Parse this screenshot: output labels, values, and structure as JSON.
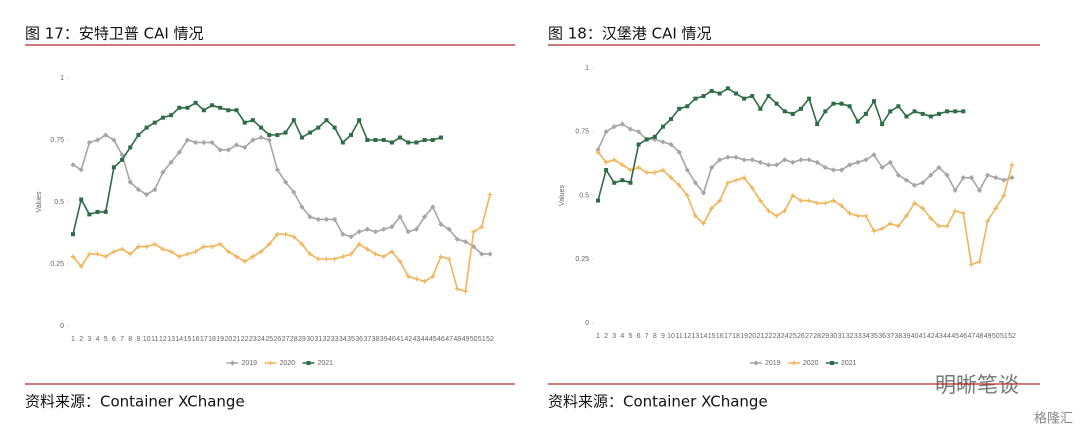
{
  "chart_data": [
    {
      "type": "line",
      "title": "图 17：安特卫普 CAI 情况",
      "source": "资料来源：Container XChange",
      "ylabel": "Values",
      "categories": [
        "1",
        "2",
        "3",
        "4",
        "5",
        "6",
        "7",
        "8",
        "9",
        "10",
        "11",
        "12",
        "13",
        "14",
        "15",
        "16",
        "17",
        "18",
        "19",
        "20",
        "21",
        "22",
        "23",
        "24",
        "25",
        "26",
        "27",
        "28",
        "29",
        "30",
        "31",
        "32",
        "33",
        "34",
        "35",
        "36",
        "37",
        "38",
        "39",
        "40",
        "41",
        "42",
        "43",
        "44",
        "45",
        "46",
        "47",
        "48",
        "49",
        "50",
        "51",
        "52"
      ],
      "ylim": [
        0,
        1
      ],
      "yticks": [
        0,
        0.25,
        0.5,
        0.75,
        1
      ],
      "legend": "bottom",
      "series": [
        {
          "name": "2019",
          "color": "#a6a6a6",
          "values": [
            0.65,
            0.63,
            0.74,
            0.75,
            0.77,
            0.75,
            0.69,
            0.58,
            0.55,
            0.53,
            0.55,
            0.62,
            0.66,
            0.7,
            0.75,
            0.74,
            0.74,
            0.74,
            0.71,
            0.71,
            0.73,
            0.72,
            0.75,
            0.76,
            0.75,
            0.63,
            0.58,
            0.54,
            0.48,
            0.44,
            0.43,
            0.43,
            0.43,
            0.37,
            0.36,
            0.38,
            0.39,
            0.38,
            0.39,
            0.4,
            0.44,
            0.38,
            0.39,
            0.44,
            0.48,
            0.41,
            0.39,
            0.35,
            0.34,
            0.32,
            0.29,
            0.29
          ]
        },
        {
          "name": "2020",
          "color": "#f0b45a",
          "values": [
            0.28,
            0.24,
            0.29,
            0.29,
            0.28,
            0.3,
            0.31,
            0.29,
            0.32,
            0.32,
            0.33,
            0.31,
            0.3,
            0.28,
            0.29,
            0.3,
            0.32,
            0.32,
            0.33,
            0.3,
            0.28,
            0.26,
            0.28,
            0.3,
            0.33,
            0.37,
            0.37,
            0.36,
            0.33,
            0.29,
            0.27,
            0.27,
            0.27,
            0.28,
            0.29,
            0.33,
            0.31,
            0.29,
            0.28,
            0.3,
            0.26,
            0.2,
            0.19,
            0.18,
            0.2,
            0.28,
            0.27,
            0.15,
            0.14,
            0.38,
            0.4,
            0.53
          ]
        },
        {
          "name": "2021",
          "color": "#2e6b46",
          "values": [
            0.37,
            0.51,
            0.45,
            0.46,
            0.46,
            0.64,
            0.67,
            0.72,
            0.77,
            0.8,
            0.82,
            0.84,
            0.85,
            0.88,
            0.88,
            0.9,
            0.87,
            0.89,
            0.88,
            0.87,
            0.87,
            0.82,
            0.83,
            0.8,
            0.77,
            0.77,
            0.78,
            0.83,
            0.76,
            0.78,
            0.8,
            0.83,
            0.8,
            0.74,
            0.77,
            0.83,
            0.75,
            0.75,
            0.75,
            0.74,
            0.76,
            0.74,
            0.74,
            0.75,
            0.75,
            0.76,
            null,
            null,
            null,
            null,
            null,
            null
          ]
        }
      ]
    },
    {
      "type": "line",
      "title": "图 18：汉堡港 CAI 情况",
      "source": "资料来源：Container XChange",
      "ylabel": "Values",
      "categories": [
        "1",
        "2",
        "3",
        "4",
        "5",
        "6",
        "7",
        "8",
        "9",
        "10",
        "11",
        "12",
        "13",
        "14",
        "15",
        "16",
        "17",
        "18",
        "19",
        "20",
        "21",
        "22",
        "23",
        "24",
        "25",
        "26",
        "27",
        "28",
        "29",
        "30",
        "31",
        "32",
        "33",
        "34",
        "35",
        "36",
        "37",
        "38",
        "39",
        "40",
        "41",
        "42",
        "43",
        "44",
        "45",
        "46",
        "47",
        "48",
        "49",
        "50",
        "51",
        "52"
      ],
      "ylim": [
        0,
        1
      ],
      "yticks": [
        0,
        0.25,
        0.5,
        0.75,
        1
      ],
      "legend": "bottom",
      "series": [
        {
          "name": "2019",
          "color": "#a6a6a6",
          "values": [
            0.68,
            0.75,
            0.77,
            0.78,
            0.76,
            0.75,
            0.72,
            0.72,
            0.71,
            0.7,
            0.67,
            0.6,
            0.55,
            0.51,
            0.61,
            0.64,
            0.65,
            0.65,
            0.64,
            0.64,
            0.63,
            0.62,
            0.62,
            0.64,
            0.63,
            0.64,
            0.64,
            0.63,
            0.61,
            0.6,
            0.6,
            0.62,
            0.63,
            0.64,
            0.66,
            0.61,
            0.63,
            0.58,
            0.56,
            0.54,
            0.55,
            0.58,
            0.61,
            0.58,
            0.52,
            0.57,
            0.57,
            0.52,
            0.58,
            0.57,
            0.56,
            0.57
          ]
        },
        {
          "name": "2020",
          "color": "#f0b45a",
          "values": [
            0.67,
            0.63,
            0.64,
            0.62,
            0.6,
            0.61,
            0.59,
            0.59,
            0.6,
            0.57,
            0.54,
            0.5,
            0.42,
            0.39,
            0.45,
            0.48,
            0.55,
            0.56,
            0.57,
            0.53,
            0.48,
            0.44,
            0.42,
            0.44,
            0.5,
            0.48,
            0.48,
            0.47,
            0.47,
            0.48,
            0.46,
            0.43,
            0.42,
            0.42,
            0.36,
            0.37,
            0.39,
            0.38,
            0.42,
            0.47,
            0.45,
            0.41,
            0.38,
            0.38,
            0.44,
            0.43,
            0.23,
            0.24,
            0.4,
            0.45,
            0.5,
            0.62
          ]
        },
        {
          "name": "2021",
          "color": "#2e6b46",
          "values": [
            0.48,
            0.6,
            0.55,
            0.56,
            0.55,
            0.7,
            0.72,
            0.73,
            0.77,
            0.8,
            0.84,
            0.85,
            0.88,
            0.89,
            0.91,
            0.9,
            0.92,
            0.9,
            0.88,
            0.89,
            0.84,
            0.89,
            0.86,
            0.83,
            0.82,
            0.84,
            0.88,
            0.78,
            0.83,
            0.86,
            0.86,
            0.85,
            0.79,
            0.82,
            0.87,
            0.78,
            0.83,
            0.85,
            0.81,
            0.83,
            0.82,
            0.81,
            0.82,
            0.83,
            0.83,
            0.83,
            null,
            null,
            null,
            null,
            null,
            null
          ]
        }
      ]
    }
  ],
  "watermarks": [
    "明晰笔谈",
    "格隆汇"
  ]
}
